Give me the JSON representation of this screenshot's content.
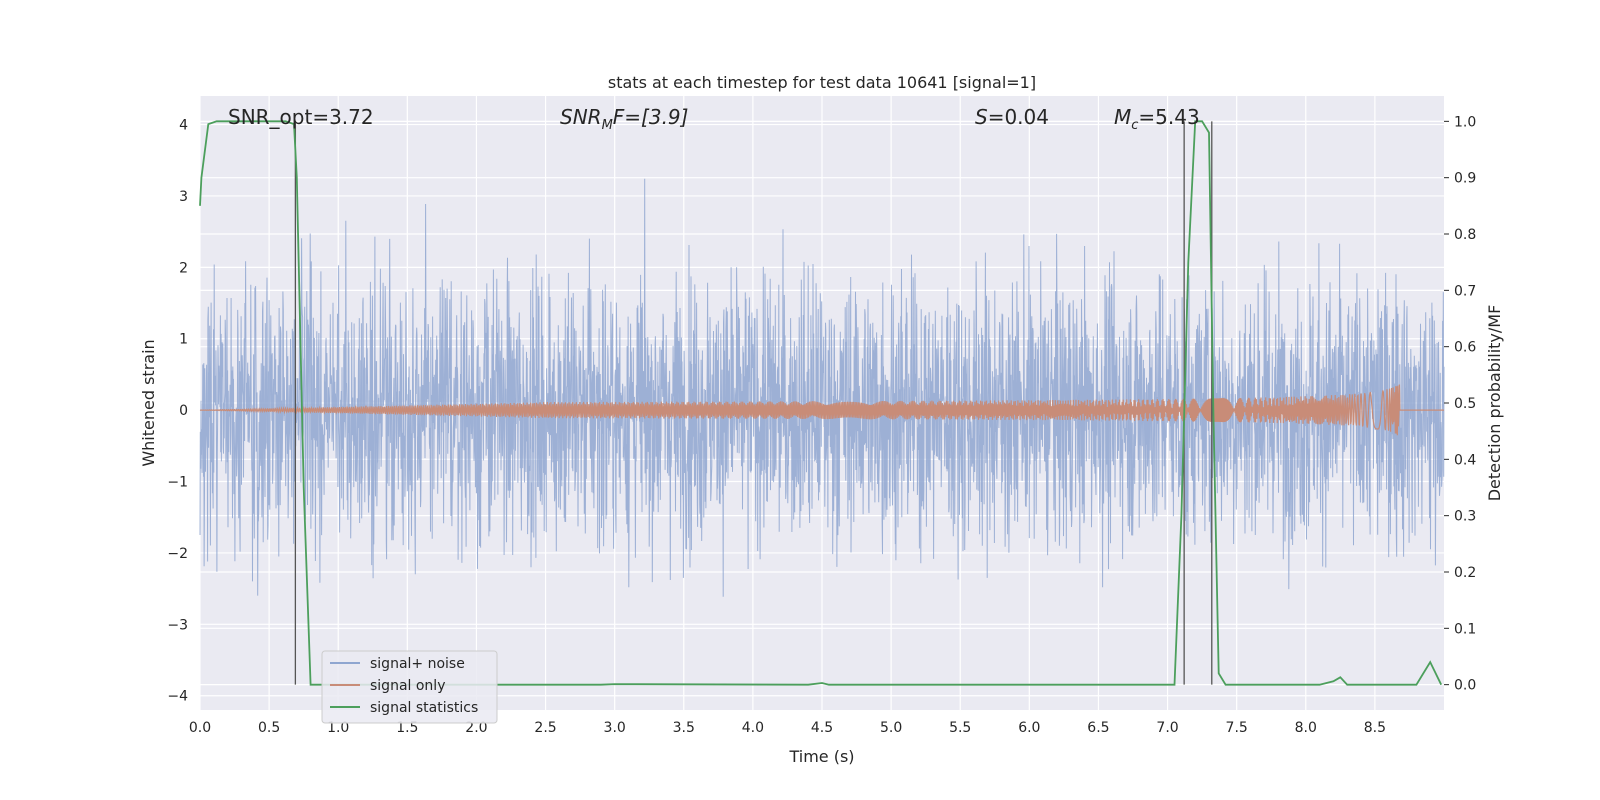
{
  "chart_data": {
    "type": "line",
    "title": "stats at each timestep for test data 10641 [signal=1]",
    "xlabel": "Time (s)",
    "ylabel": "Whitened strain",
    "y2label": "Detection probability/MF",
    "xlim": [
      0.0,
      9.0
    ],
    "ylim": [
      -4.2,
      4.4
    ],
    "y2lim": [
      -0.045,
      1.045
    ],
    "xticks": [
      "0.0",
      "0.5",
      "1.0",
      "1.5",
      "2.0",
      "2.5",
      "3.0",
      "3.5",
      "4.0",
      "4.5",
      "5.0",
      "5.5",
      "6.0",
      "6.5",
      "7.0",
      "7.5",
      "8.0",
      "8.5"
    ],
    "yticks": [
      "4",
      "3",
      "2",
      "1",
      "0",
      "−1",
      "−2",
      "−3",
      "−4"
    ],
    "y2ticks": [
      "1.0",
      "0.9",
      "0.8",
      "0.7",
      "0.6",
      "0.5",
      "0.4",
      "0.3",
      "0.2",
      "0.1",
      "0.0"
    ],
    "grid": true,
    "legend_position": "bottom-left",
    "annotations": {
      "snr_opt": "SNR_opt=3.72",
      "snr_mf_base": "SNR",
      "snr_mf_sub": "M",
      "snr_mf_tail": "F=[3.9]",
      "s_var": "S",
      "s_val": "=0.04",
      "mc_var": "M",
      "mc_sub": "c",
      "mc_val": "=5.43"
    },
    "vertical_markers_x": [
      0.69,
      7.12,
      7.32
    ],
    "series": [
      {
        "name": "signal+ noise",
        "color": "#8fa6d0",
        "axis": "left",
        "noise_envelope_typical": [
          -2.4,
          2.4
        ],
        "noise_envelope_peak": [
          -3.7,
          4.0
        ]
      },
      {
        "name": "signal only",
        "color": "#c88c78",
        "axis": "left",
        "chirp_end_x": 8.68,
        "chirp_peak_amplitude": 0.38
      },
      {
        "name": "signal statistics",
        "color": "#4c9f5c",
        "axis": "right",
        "x": [
          0.0,
          0.01,
          0.06,
          0.12,
          0.5,
          0.62,
          0.68,
          0.7,
          0.75,
          0.8,
          1.0,
          2.9,
          3.0,
          4.4,
          4.5,
          4.55,
          5.0,
          7.05,
          7.1,
          7.15,
          7.2,
          7.25,
          7.3,
          7.33,
          7.37,
          7.42,
          8.1,
          8.2,
          8.25,
          8.3,
          8.8,
          8.85,
          8.9,
          8.98
        ],
        "values": [
          0.85,
          0.9,
          0.995,
          1.0,
          1.0,
          1.0,
          0.995,
          0.9,
          0.35,
          0.0,
          0.0,
          0.0,
          0.001,
          0.0,
          0.003,
          0.0,
          0.0,
          0.0,
          0.3,
          0.75,
          1.0,
          1.0,
          0.98,
          0.5,
          0.02,
          0.0,
          0.0,
          0.006,
          0.013,
          0.0,
          0.0,
          0.02,
          0.04,
          0.0
        ]
      }
    ]
  }
}
